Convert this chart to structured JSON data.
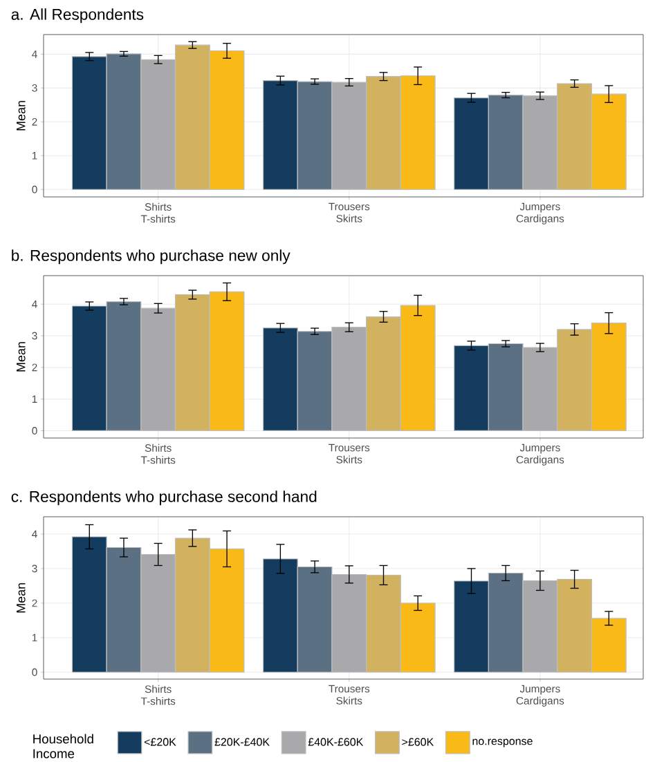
{
  "chart_data": [
    {
      "type": "bar",
      "title": "a. All Respondents",
      "ylabel": "Mean",
      "categories": [
        "Shirts T-shirts",
        "Trousers Skirts",
        "Jumpers Cardigans"
      ],
      "ylim": [
        -0.22,
        4.58
      ],
      "yticks": [
        0,
        1,
        2,
        3,
        4
      ],
      "grid": true,
      "series": [
        {
          "color": "#133c5e",
          "values": [
            3.93,
            3.22,
            2.71
          ],
          "errors": [
            0.12,
            0.13,
            0.13
          ]
        },
        {
          "color": "#5b7083",
          "values": [
            4.01,
            3.19,
            2.79
          ],
          "errors": [
            0.07,
            0.08,
            0.08
          ]
        },
        {
          "color": "#a9a9ab",
          "values": [
            3.84,
            3.17,
            2.77
          ],
          "errors": [
            0.12,
            0.11,
            0.11
          ]
        },
        {
          "color": "#d2b25e",
          "values": [
            4.27,
            3.34,
            3.13
          ],
          "errors": [
            0.1,
            0.12,
            0.11
          ]
        },
        {
          "color": "#f9b916",
          "values": [
            4.1,
            3.36,
            2.82
          ],
          "errors": [
            0.22,
            0.26,
            0.25
          ]
        }
      ]
    },
    {
      "type": "bar",
      "title": "b. Respondents who purchase new only",
      "ylabel": "Mean",
      "categories": [
        "Shirts T-shirts",
        "Trousers Skirts",
        "Jumpers Cardigans"
      ],
      "ylim": [
        -0.23,
        4.9
      ],
      "yticks": [
        0,
        1,
        2,
        3,
        4
      ],
      "grid": true,
      "series": [
        {
          "color": "#133c5e",
          "values": [
            3.94,
            3.25,
            2.69
          ],
          "errors": [
            0.13,
            0.14,
            0.14
          ]
        },
        {
          "color": "#5b7083",
          "values": [
            4.08,
            3.14,
            2.75
          ],
          "errors": [
            0.1,
            0.1,
            0.1
          ]
        },
        {
          "color": "#a9a9ab",
          "values": [
            3.87,
            3.27,
            2.63
          ],
          "errors": [
            0.15,
            0.14,
            0.13
          ]
        },
        {
          "color": "#d2b25e",
          "values": [
            4.3,
            3.6,
            3.2
          ],
          "errors": [
            0.14,
            0.17,
            0.18
          ]
        },
        {
          "color": "#f9b916",
          "values": [
            4.39,
            3.96,
            3.4
          ],
          "errors": [
            0.28,
            0.32,
            0.33
          ]
        }
      ]
    },
    {
      "type": "bar",
      "title": "c. Respondents who purchase second hand",
      "ylabel": "Mean",
      "categories": [
        "Shirts T-shirts",
        "Trousers Skirts",
        "Jumpers Cardigans"
      ],
      "ylim": [
        -0.2,
        4.5
      ],
      "yticks": [
        0,
        1,
        2,
        3,
        4
      ],
      "grid": true,
      "legend": "bottom",
      "legend_title": "Household Income",
      "series": [
        {
          "name": "<£20K",
          "color": "#133c5e",
          "values": [
            3.92,
            3.28,
            2.64
          ],
          "errors": [
            0.35,
            0.42,
            0.36
          ]
        },
        {
          "name": "£20K-£40K",
          "color": "#5b7083",
          "values": [
            3.61,
            3.05,
            2.87
          ],
          "errors": [
            0.27,
            0.17,
            0.22
          ]
        },
        {
          "name": "£40K-£60K",
          "color": "#a9a9ab",
          "values": [
            3.41,
            2.83,
            2.65
          ],
          "errors": [
            0.32,
            0.25,
            0.28
          ]
        },
        {
          "name": ">£60K",
          "color": "#d2b25e",
          "values": [
            3.88,
            2.81,
            2.69
          ],
          "errors": [
            0.24,
            0.28,
            0.26
          ]
        },
        {
          "name": "no.response",
          "color": "#f9b916",
          "values": [
            3.57,
            2.0,
            1.56
          ],
          "errors": [
            0.52,
            0.21,
            0.2
          ]
        }
      ]
    }
  ]
}
